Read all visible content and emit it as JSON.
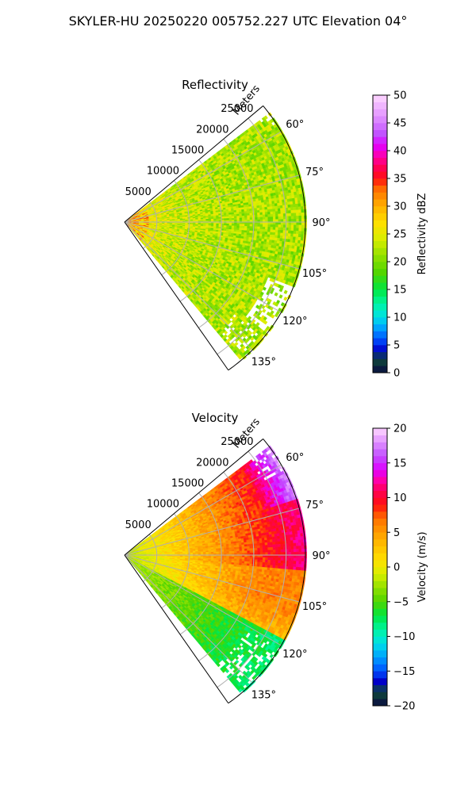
{
  "figure": {
    "suptitle": "SKYLER-HU  20250220  005752.227 UTC Elevation 04°"
  },
  "colors": {
    "grid": "#b0b0b0",
    "axis": "#000000"
  },
  "chart_data": [
    {
      "type": "polar-sector",
      "title": "Reflectivity",
      "radial_label": "Meters",
      "theta_range_deg": [
        50,
        145
      ],
      "theta_ticks_deg": [
        60,
        75,
        90,
        105,
        120,
        135
      ],
      "theta_tick_labels": [
        "60°",
        "75°",
        "90°",
        "105°",
        "120°",
        "135°"
      ],
      "r_range": [
        0,
        28000
      ],
      "r_ticks": [
        5000,
        10000,
        15000,
        20000,
        25000
      ],
      "r_tick_labels": [
        "5000",
        "10000",
        "15000",
        "20000",
        "25000"
      ],
      "data_theta_range_deg": [
        53,
        140
      ],
      "data_r_max": 28000,
      "field_pattern": "Mostly 20–30 dBZ returns across the sector, yellow-orange (28–34 dBZ) near the radar, a few red pixels (~35 dBZ) close to origin, green (18–22 dBZ) speckle at long range; data gaps near 115–125° beyond 24000 m.",
      "colorbar": {
        "label": "Reflectivity dBZ",
        "range": [
          0,
          50
        ],
        "ticks": [
          0,
          5,
          10,
          15,
          20,
          25,
          30,
          35,
          40,
          45,
          50
        ],
        "tick_labels": [
          "0",
          "5",
          "10",
          "15",
          "20",
          "25",
          "30",
          "35",
          "40",
          "45",
          "50"
        ],
        "stops": [
          {
            "v": 0,
            "c": "#0a0a40"
          },
          {
            "v": 2.5,
            "c": "#0f4a3a"
          },
          {
            "v": 4,
            "c": "#0000c8"
          },
          {
            "v": 6,
            "c": "#0050ff"
          },
          {
            "v": 8,
            "c": "#00a0ff"
          },
          {
            "v": 10,
            "c": "#00e0e8"
          },
          {
            "v": 12.5,
            "c": "#00f5a0"
          },
          {
            "v": 15,
            "c": "#00e640"
          },
          {
            "v": 18,
            "c": "#50d400"
          },
          {
            "v": 21,
            "c": "#90e000"
          },
          {
            "v": 24,
            "c": "#d8ee00"
          },
          {
            "v": 27,
            "c": "#ffe000"
          },
          {
            "v": 30,
            "c": "#ffb000"
          },
          {
            "v": 33,
            "c": "#ff7000"
          },
          {
            "v": 35,
            "c": "#ff1010"
          },
          {
            "v": 37,
            "c": "#ff0055"
          },
          {
            "v": 39,
            "c": "#ff00aa"
          },
          {
            "v": 41,
            "c": "#e000ff"
          },
          {
            "v": 43,
            "c": "#c050ff"
          },
          {
            "v": 46,
            "c": "#e090ff"
          },
          {
            "v": 50,
            "c": "#ffd8ff"
          }
        ]
      }
    },
    {
      "type": "polar-sector",
      "title": "Velocity",
      "radial_label": "Meters",
      "theta_range_deg": [
        50,
        145
      ],
      "theta_ticks_deg": [
        60,
        75,
        90,
        105,
        120,
        135
      ],
      "theta_tick_labels": [
        "60°",
        "75°",
        "90°",
        "105°",
        "120°",
        "135°"
      ],
      "r_range": [
        0,
        28000
      ],
      "r_ticks": [
        5000,
        10000,
        15000,
        20000,
        25000
      ],
      "r_tick_labels": [
        "5000",
        "10000",
        "15000",
        "20000",
        "25000"
      ],
      "data_theta_range_deg": [
        53,
        140
      ],
      "data_r_max": 28000,
      "field_pattern": "Near-zero (yellow-green) velocities close to radar; positive velocities increasing toward far range at 55–95° (red ~10 m/s, magenta ~15 m/s near 55–70°); orange ~5 m/s band around 100–115°; negative (green ~-5 to -8 m/s) at 120–140° far range.",
      "colorbar": {
        "label": "Velocity (m/s)",
        "range": [
          -20,
          20
        ],
        "ticks": [
          -20,
          -15,
          -10,
          -5,
          0,
          5,
          10,
          15,
          20
        ],
        "tick_labels": [
          "−20",
          "−15",
          "−10",
          "−5",
          "0",
          "5",
          "10",
          "15",
          "20"
        ],
        "stops": [
          {
            "v": -20,
            "c": "#0a0a40"
          },
          {
            "v": -18,
            "c": "#0f4a3a"
          },
          {
            "v": -16.5,
            "c": "#0000c8"
          },
          {
            "v": -15,
            "c": "#0050ff"
          },
          {
            "v": -13,
            "c": "#00a0ff"
          },
          {
            "v": -11,
            "c": "#00e0e8"
          },
          {
            "v": -9,
            "c": "#00f5a0"
          },
          {
            "v": -7,
            "c": "#00e640"
          },
          {
            "v": -5,
            "c": "#50d400"
          },
          {
            "v": -3,
            "c": "#90e000"
          },
          {
            "v": -1,
            "c": "#d8ee00"
          },
          {
            "v": 1,
            "c": "#ffe000"
          },
          {
            "v": 4,
            "c": "#ffb000"
          },
          {
            "v": 7,
            "c": "#ff7000"
          },
          {
            "v": 9,
            "c": "#ff1010"
          },
          {
            "v": 11,
            "c": "#ff0055"
          },
          {
            "v": 12.5,
            "c": "#ff00aa"
          },
          {
            "v": 14,
            "c": "#e000ff"
          },
          {
            "v": 16,
            "c": "#c050ff"
          },
          {
            "v": 18,
            "c": "#e090ff"
          },
          {
            "v": 20,
            "c": "#ffd8ff"
          }
        ]
      }
    }
  ]
}
